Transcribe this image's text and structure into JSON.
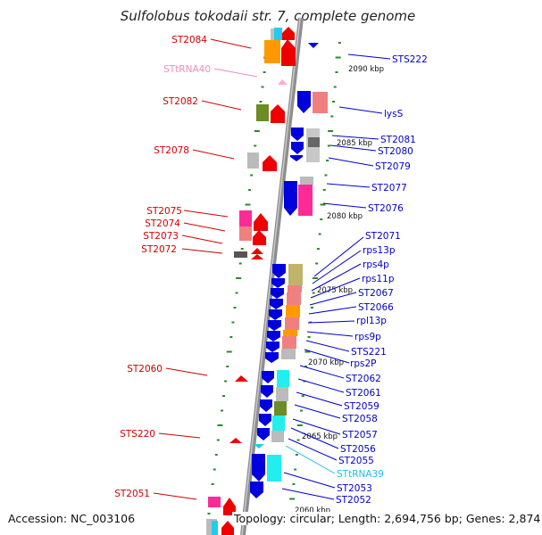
{
  "title": "Sulfolobus tokodaii str. 7, complete genome",
  "footer": {
    "accession": "Accession: NC_003106",
    "topology": "Topology: circular; Length: 2,694,756 bp; Genes: 2,874"
  },
  "colors": {
    "backbone": "#8e8e8e",
    "forward_label": "#d20000",
    "reverse_label": "#0000cc",
    "trna_label_pink": "#f08cc0",
    "trna_label_cyan": "#22bbee",
    "tick": "#2a8a2a"
  },
  "kbp_markers": [
    "2090 kbp",
    "2085 kbp",
    "2080 kbp",
    "2075 kbp",
    "2070 kbp",
    "2065 kbp",
    "2060 kbp"
  ],
  "left_labels": [
    {
      "text": "ST2084",
      "color": "#d20000"
    },
    {
      "text": "STtRNA40",
      "color": "#f08cc0"
    },
    {
      "text": "ST2082",
      "color": "#d20000"
    },
    {
      "text": "ST2078",
      "color": "#d20000"
    },
    {
      "text": "ST2075",
      "color": "#d20000"
    },
    {
      "text": "ST2074",
      "color": "#d20000"
    },
    {
      "text": "ST2073",
      "color": "#d20000"
    },
    {
      "text": "ST2072",
      "color": "#d20000"
    },
    {
      "text": "ST2060",
      "color": "#d20000"
    },
    {
      "text": "STS220",
      "color": "#d20000"
    },
    {
      "text": "ST2051",
      "color": "#d20000"
    }
  ],
  "right_labels": [
    {
      "text": "STS222",
      "color": "#0000cc"
    },
    {
      "text": "lysS",
      "color": "#0000cc"
    },
    {
      "text": "ST2081",
      "color": "#0000cc"
    },
    {
      "text": "ST2080",
      "color": "#0000cc"
    },
    {
      "text": "ST2079",
      "color": "#0000cc"
    },
    {
      "text": "ST2077",
      "color": "#0000cc"
    },
    {
      "text": "ST2076",
      "color": "#0000cc"
    },
    {
      "text": "ST2071",
      "color": "#0000cc"
    },
    {
      "text": "rps13p",
      "color": "#0000cc"
    },
    {
      "text": "rps4p",
      "color": "#0000cc"
    },
    {
      "text": "rps11p",
      "color": "#0000cc"
    },
    {
      "text": "ST2067",
      "color": "#0000cc"
    },
    {
      "text": "ST2066",
      "color": "#0000cc"
    },
    {
      "text": "rpl13p",
      "color": "#0000cc"
    },
    {
      "text": "rps9p",
      "color": "#0000cc"
    },
    {
      "text": "STS221",
      "color": "#0000cc"
    },
    {
      "text": "rps2P",
      "color": "#0000cc"
    },
    {
      "text": "ST2062",
      "color": "#0000cc"
    },
    {
      "text": "ST2061",
      "color": "#0000cc"
    },
    {
      "text": "ST2059",
      "color": "#0000cc"
    },
    {
      "text": "ST2058",
      "color": "#0000cc"
    },
    {
      "text": "ST2057",
      "color": "#0000cc"
    },
    {
      "text": "ST2056",
      "color": "#0000cc"
    },
    {
      "text": "ST2055",
      "color": "#0000cc"
    },
    {
      "text": "STtRNA39",
      "color": "#22bbee"
    },
    {
      "text": "ST2053",
      "color": "#0000cc"
    },
    {
      "text": "ST2052",
      "color": "#0000cc"
    }
  ]
}
